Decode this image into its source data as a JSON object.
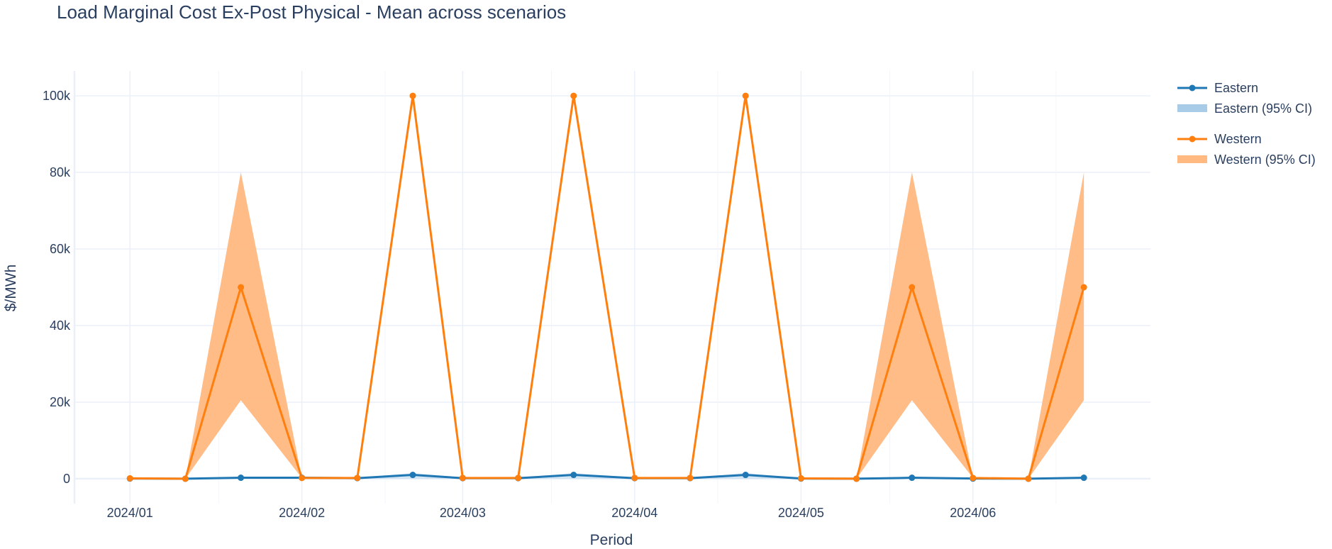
{
  "chart_data": {
    "type": "line",
    "title": "Load Marginal Cost Ex-Post Physical - Mean across scenarios",
    "xlabel": "Period",
    "ylabel": "$/MWh",
    "ylim": [
      -6500,
      106500
    ],
    "yticks": [
      0,
      20000,
      40000,
      60000,
      80000,
      100000
    ],
    "ytick_labels": [
      "0",
      "20k",
      "40k",
      "60k",
      "80k",
      "100k"
    ],
    "xtick_labels": [
      "2024/01",
      "2024/02",
      "2024/03",
      "2024/04",
      "2024/05",
      "2024/06"
    ],
    "grid": true,
    "legend_position": "top-right outside",
    "x": [
      "2024-01-01",
      "2024-01-11",
      "2024-01-21",
      "2024-02-01",
      "2024-02-11",
      "2024-02-21",
      "2024-03-01",
      "2024-03-11",
      "2024-03-21",
      "2024-04-01",
      "2024-04-11",
      "2024-04-21",
      "2024-05-01",
      "2024-05-11",
      "2024-05-21",
      "2024-06-01",
      "2024-06-11",
      "2024-06-21"
    ],
    "series": [
      {
        "name": "Eastern",
        "color": "#1f77b4",
        "values": [
          50,
          0,
          250,
          250,
          150,
          1000,
          150,
          150,
          1000,
          150,
          150,
          1000,
          50,
          0,
          250,
          50,
          0,
          250
        ],
        "ci_name": "Eastern (95% CI)",
        "ci_color": "#a8cce8",
        "ci_lower": [
          0,
          0,
          0,
          0,
          0,
          0,
          0,
          0,
          0,
          0,
          0,
          0,
          0,
          0,
          0,
          0,
          0,
          0
        ],
        "ci_upper": [
          100,
          50,
          500,
          500,
          300,
          1500,
          300,
          300,
          1500,
          300,
          300,
          1500,
          100,
          50,
          500,
          100,
          50,
          500
        ]
      },
      {
        "name": "Western",
        "color": "#ff7f0e",
        "values": [
          100,
          0,
          50000,
          200,
          200,
          100000,
          200,
          200,
          100000,
          200,
          200,
          100000,
          100,
          0,
          50000,
          200,
          0,
          50000
        ],
        "ci_name": "Western (95% CI)",
        "ci_color": "#ffb57a",
        "ci_lower": [
          100,
          0,
          20500,
          200,
          200,
          100000,
          200,
          200,
          100000,
          200,
          200,
          100000,
          100,
          0,
          20500,
          200,
          0,
          20500
        ],
        "ci_upper": [
          100,
          0,
          80000,
          200,
          200,
          100000,
          200,
          200,
          100000,
          200,
          200,
          100000,
          100,
          0,
          80000,
          200,
          0,
          80000
        ]
      }
    ]
  }
}
